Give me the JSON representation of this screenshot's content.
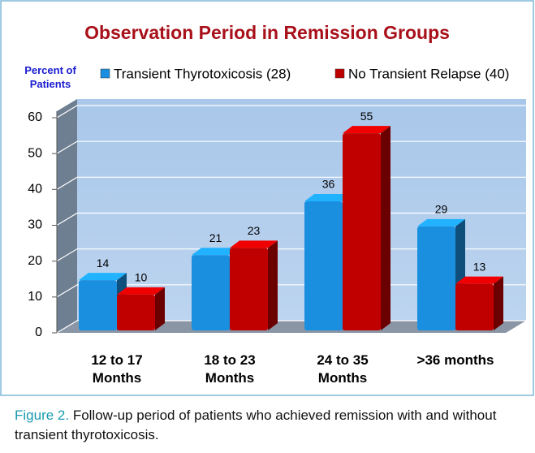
{
  "chart_data": {
    "type": "bar3d",
    "title": "Observation Period in Remission Groups",
    "ylabel": "Percent of\nPatients",
    "categories": [
      "12 to 17\nMonths",
      "18 to 23\nMonths",
      "24 to 35\nMonths",
      ">36 months"
    ],
    "series": [
      {
        "name": "Transient Thyrotoxicosis (28)",
        "color": "#1a8fe0",
        "values": [
          14,
          21,
          36,
          29
        ]
      },
      {
        "name": "No Transient Relapse (40)",
        "color": "#c00000",
        "values": [
          10,
          23,
          55,
          13
        ]
      }
    ],
    "ylim": [
      0,
      60
    ],
    "yticks": [
      0,
      10,
      20,
      30,
      40,
      50,
      60
    ],
    "grid": true
  },
  "caption": {
    "label": "Figure 2.",
    "text": " Follow-up period of patients who achieved remission with and without transient thyrotoxicosis."
  }
}
